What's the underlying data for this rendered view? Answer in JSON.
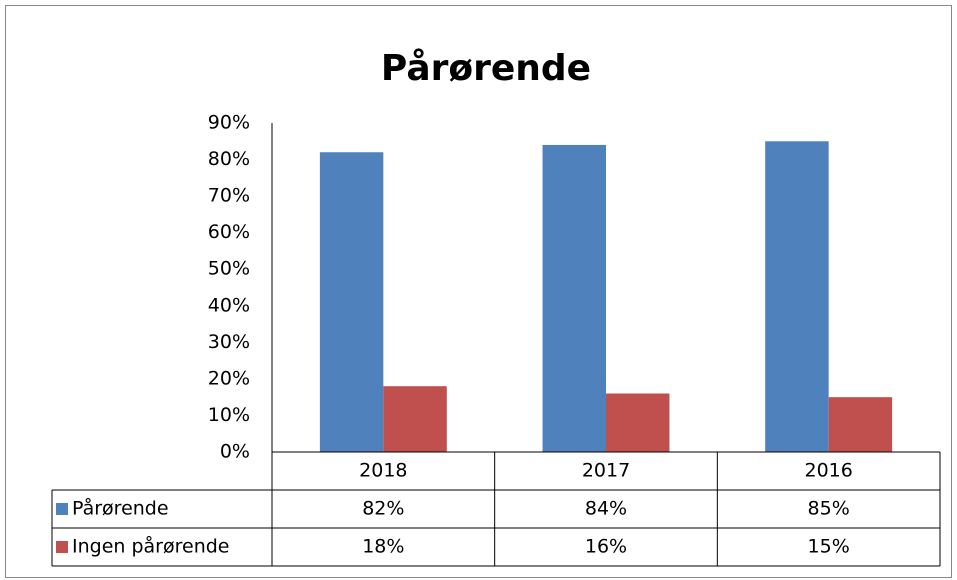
{
  "chart_data": {
    "type": "bar",
    "title": "Pårørende",
    "categories": [
      "2018",
      "2017",
      "2016"
    ],
    "series": [
      {
        "name": "Pårørende",
        "color": "#4f81bd",
        "values": [
          82,
          84,
          85
        ],
        "value_labels": [
          "82%",
          "84%",
          "85%"
        ]
      },
      {
        "name": "Ingen pårørende",
        "color": "#c0504d",
        "values": [
          18,
          16,
          15
        ],
        "value_labels": [
          "18%",
          "16%",
          "15%"
        ]
      }
    ],
    "ylim": [
      0,
      90
    ],
    "yticks": [
      {
        "value": 0,
        "label": "0%"
      },
      {
        "value": 10,
        "label": "10%"
      },
      {
        "value": 20,
        "label": "20%"
      },
      {
        "value": 30,
        "label": "30%"
      },
      {
        "value": 40,
        "label": "40%"
      },
      {
        "value": 50,
        "label": "50%"
      },
      {
        "value": 60,
        "label": "60%"
      },
      {
        "value": 70,
        "label": "70%"
      },
      {
        "value": 80,
        "label": "80%"
      },
      {
        "value": 90,
        "label": "90%"
      }
    ],
    "grid": false
  }
}
